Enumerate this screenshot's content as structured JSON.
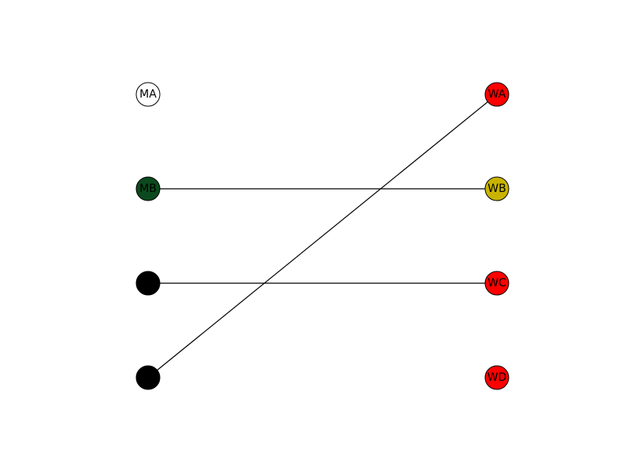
{
  "graph": {
    "left_nodes": [
      {
        "id": "MA",
        "label": "MA",
        "color": "#ffffff"
      },
      {
        "id": "MB",
        "label": "MB",
        "color": "#0b4a1e"
      },
      {
        "id": "MC",
        "label": "",
        "color": "#000000"
      },
      {
        "id": "MD",
        "label": "",
        "color": "#000000"
      }
    ],
    "right_nodes": [
      {
        "id": "WA",
        "label": "WA",
        "color": "#ff0000"
      },
      {
        "id": "WB",
        "label": "WB",
        "color": "#c8b400"
      },
      {
        "id": "WC",
        "label": "WC",
        "color": "#ff0000"
      },
      {
        "id": "WD",
        "label": "WD",
        "color": "#ff0000"
      }
    ],
    "edges": [
      {
        "from": "MB",
        "to": "WB"
      },
      {
        "from": "MC",
        "to": "WC"
      },
      {
        "from": "MD",
        "to": "WA"
      }
    ]
  }
}
